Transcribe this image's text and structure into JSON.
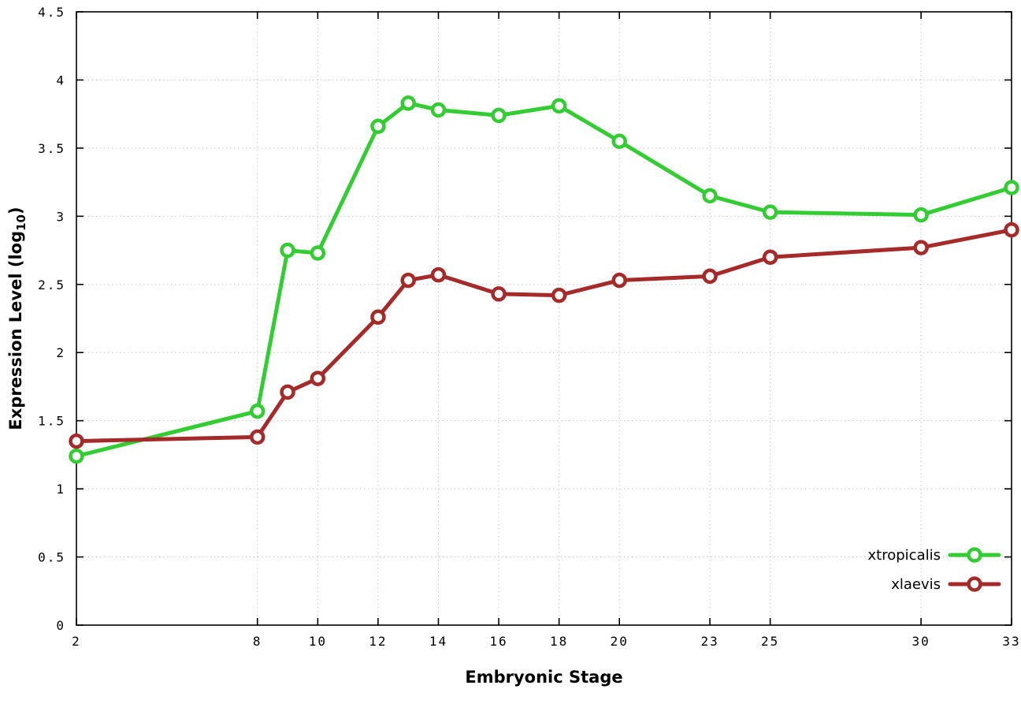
{
  "figure": {
    "xlabel": "Embryonic Stage",
    "ylabel_main": "Expression Level (log",
    "ylabel_sub": "10",
    "ylabel_close": ")"
  },
  "chart_data": {
    "type": "line",
    "title": "",
    "xlabel": "Embryonic Stage",
    "ylabel": "Expression Level (log10)",
    "xlim": [
      2,
      33
    ],
    "ylim": [
      0,
      4.5
    ],
    "x_ticks": [
      2,
      8,
      10,
      12,
      14,
      16,
      18,
      20,
      23,
      25,
      30,
      33
    ],
    "y_ticks": [
      0,
      0.5,
      1,
      1.5,
      2,
      2.5,
      3,
      3.5,
      4,
      4.5
    ],
    "grid": true,
    "grid_color": "#c8c8c8",
    "background": "#ffffff",
    "legend_position": "inside-bottom-right",
    "x": [
      2,
      8,
      9,
      10,
      12,
      13,
      14,
      16,
      18,
      20,
      23,
      25,
      30,
      33
    ],
    "series": [
      {
        "name": "xtropicalis",
        "color": "#33cc33",
        "values": [
          1.24,
          1.57,
          2.75,
          2.73,
          3.66,
          3.83,
          3.78,
          3.74,
          3.81,
          3.55,
          3.15,
          3.03,
          3.01,
          3.21
        ]
      },
      {
        "name": "xlaevis",
        "color": "#a52a2a",
        "values": [
          1.35,
          1.38,
          1.71,
          1.81,
          2.26,
          2.53,
          2.57,
          2.43,
          2.42,
          2.53,
          2.56,
          2.7,
          2.77,
          2.9
        ]
      }
    ]
  }
}
